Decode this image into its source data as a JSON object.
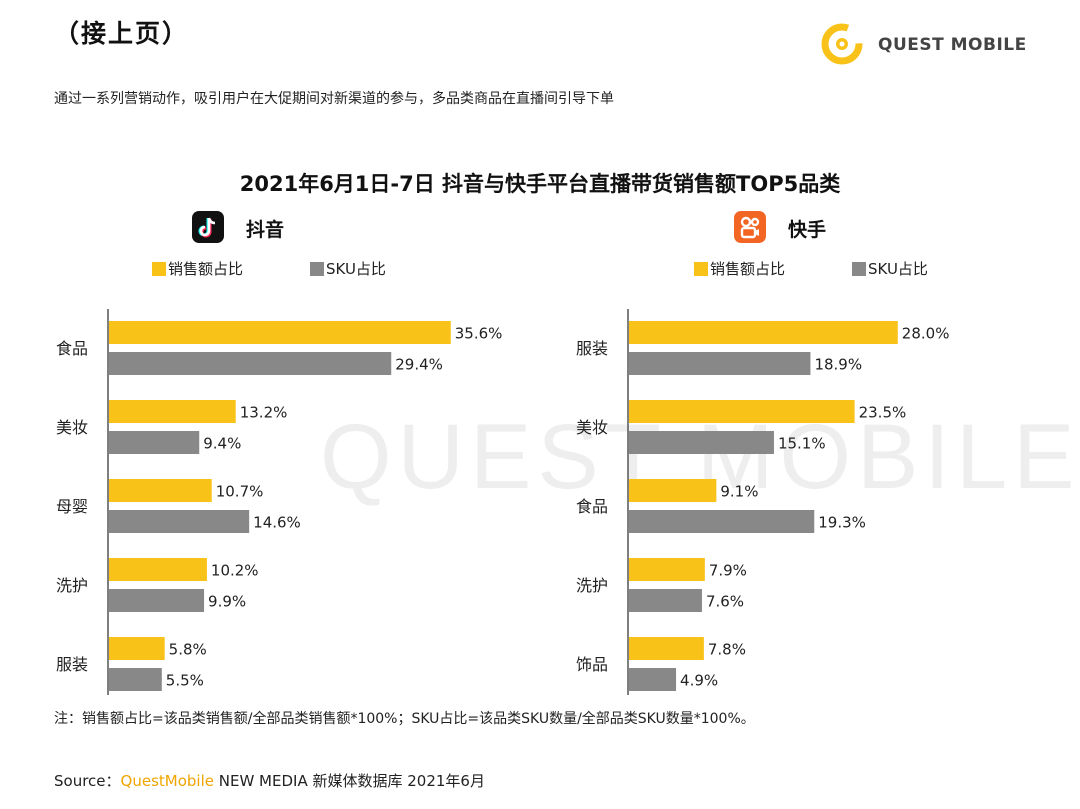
{
  "header": "（接上页）",
  "subtitle": "通过一系列营销动作，吸引用户在大促期间对新渠道的参与，多品类商品在直播间引导下单",
  "logo_text": "QUEST MOBILE",
  "watermark": "QUEST MOBILE",
  "colors": {
    "sales": "#f9c218",
    "sku": "#888888",
    "douyin_icon": "#111111",
    "kuaishou_icon": "#f26522",
    "brand": "#f0a500"
  },
  "chart_data": [
    {
      "type": "bar",
      "orientation": "horizontal",
      "title": "2021年6月1日-7日 抖音与快手平台直播带货销售额TOP5品类",
      "platform": "抖音",
      "platform_icon": "douyin-logo-icon",
      "categories": [
        "食品",
        "美妆",
        "母婴",
        "洗护",
        "服装"
      ],
      "series": [
        {
          "name": "销售额占比",
          "values": [
            35.6,
            13.2,
            10.7,
            10.2,
            5.8
          ],
          "labels": [
            "35.6%",
            "13.2%",
            "10.7%",
            "10.2%",
            "5.8%"
          ]
        },
        {
          "name": "SKU占比",
          "values": [
            29.4,
            9.4,
            14.6,
            9.9,
            5.5
          ],
          "labels": [
            "29.4%",
            "9.4%",
            "14.6%",
            "9.9%",
            "5.5%"
          ]
        }
      ],
      "legend_position": "top",
      "grid": false
    },
    {
      "type": "bar",
      "orientation": "horizontal",
      "platform": "快手",
      "platform_icon": "kuaishou-logo-icon",
      "categories": [
        "服装",
        "美妆",
        "食品",
        "洗护",
        "饰品"
      ],
      "series": [
        {
          "name": "销售额占比",
          "values": [
            28.0,
            23.5,
            9.1,
            7.9,
            7.8
          ],
          "labels": [
            "28.0%",
            "23.5%",
            "9.1%",
            "7.9%",
            "7.8%"
          ]
        },
        {
          "name": "SKU占比",
          "values": [
            18.9,
            15.1,
            19.3,
            7.6,
            4.9
          ],
          "labels": [
            "18.9%",
            "15.1%",
            "19.3%",
            "7.6%",
            "4.9%"
          ]
        }
      ],
      "legend_position": "top",
      "grid": false
    }
  ],
  "note": "注：销售额占比=该品类销售额/全部品类销售额*100%；SKU占比=该品类SKU数量/全部品类SKU数量*100%。",
  "source": {
    "prefix": "Source：",
    "brand": "QuestMobile",
    "rest": " NEW MEDIA 新媒体数据库 2021年6月"
  }
}
